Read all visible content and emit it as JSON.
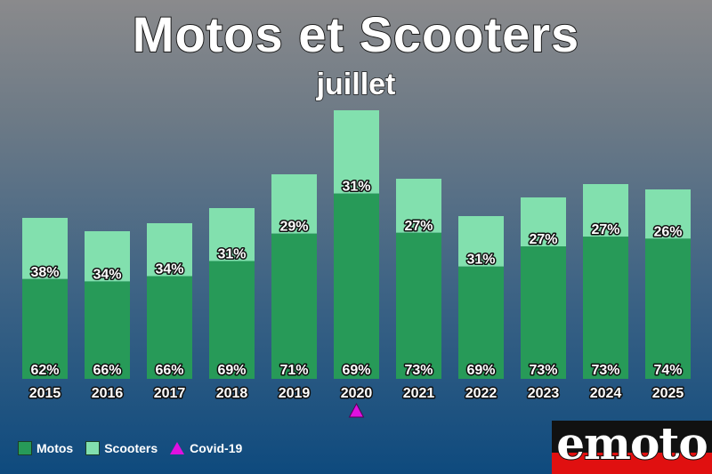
{
  "header": {
    "title": "Motos et Scooters",
    "subtitle": "juillet"
  },
  "colors": {
    "motos": "#279a58",
    "scooters": "#82e0ae",
    "covid": "#e010e0"
  },
  "chart_data": {
    "type": "bar",
    "stacked": true,
    "title": "Motos et Scooters",
    "subtitle": "juillet",
    "categories": [
      "2015",
      "2016",
      "2017",
      "2018",
      "2019",
      "2020",
      "2021",
      "2022",
      "2023",
      "2024",
      "2025"
    ],
    "series": [
      {
        "name": "Motos",
        "values": [
          62,
          66,
          66,
          69,
          71,
          69,
          73,
          69,
          73,
          73,
          74
        ],
        "labels": [
          "62%",
          "66%",
          "66%",
          "69%",
          "71%",
          "69%",
          "73%",
          "69%",
          "73%",
          "73%",
          "74%"
        ]
      },
      {
        "name": "Scooters",
        "values": [
          38,
          34,
          34,
          31,
          29,
          31,
          27,
          31,
          27,
          27,
          26
        ],
        "labels": [
          "38%",
          "34%",
          "34%",
          "31%",
          "29%",
          "31%",
          "27%",
          "31%",
          "27%",
          "27%",
          "26%"
        ]
      }
    ],
    "relative_totals": [
      181,
      166,
      175,
      192,
      230,
      302,
      225,
      183,
      204,
      219,
      213
    ],
    "marker": {
      "category": "2020",
      "label": "Covid-19",
      "shape": "triangle"
    },
    "grid": false,
    "legend_position": "bottom-left"
  },
  "legend": {
    "motos_label": "Motos",
    "scooters_label": "Scooters",
    "covid_label": "Covid-19"
  },
  "logo": {
    "text": "emoto"
  }
}
